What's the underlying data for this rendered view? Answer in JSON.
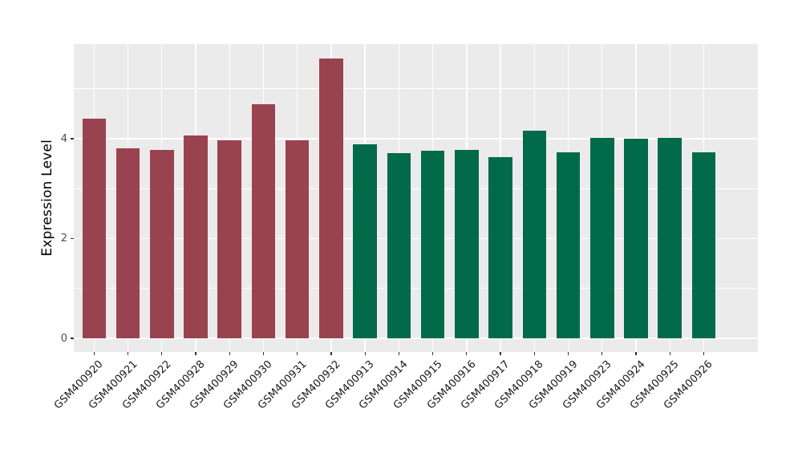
{
  "chart_data": {
    "type": "bar",
    "ylabel": "Expression Level",
    "categories": [
      "GSM400920",
      "GSM400921",
      "GSM400922",
      "GSM400928",
      "GSM400929",
      "GSM400930",
      "GSM400931",
      "GSM400932",
      "GSM400913",
      "GSM400914",
      "GSM400915",
      "GSM400916",
      "GSM400917",
      "GSM400918",
      "GSM400919",
      "GSM400923",
      "GSM400924",
      "GSM400925",
      "GSM400926"
    ],
    "values": [
      4.4,
      3.81,
      3.78,
      4.07,
      3.97,
      4.69,
      3.97,
      5.6,
      3.89,
      3.71,
      3.76,
      3.78,
      3.63,
      4.16,
      3.73,
      4.02,
      4.0,
      4.02,
      3.73
    ],
    "groups": [
      "red",
      "red",
      "red",
      "red",
      "red",
      "red",
      "red",
      "red",
      "green",
      "green",
      "green",
      "green",
      "green",
      "green",
      "green",
      "green",
      "green",
      "green",
      "green"
    ],
    "palette": {
      "red": "#9A4350",
      "green": "#006A49"
    },
    "yticks": [
      0,
      2,
      4
    ],
    "yticks_minor": [
      1,
      3,
      5
    ],
    "ylim": [
      -0.273,
      5.896
    ],
    "x_tick_rotation": 45,
    "grid": "on",
    "legend": "none",
    "panel_background": "#EBEBEB",
    "gridline_color": "#FFFFFF",
    "axis_text_color": "#4D4D4D",
    "bar_width_fraction": 0.7
  }
}
